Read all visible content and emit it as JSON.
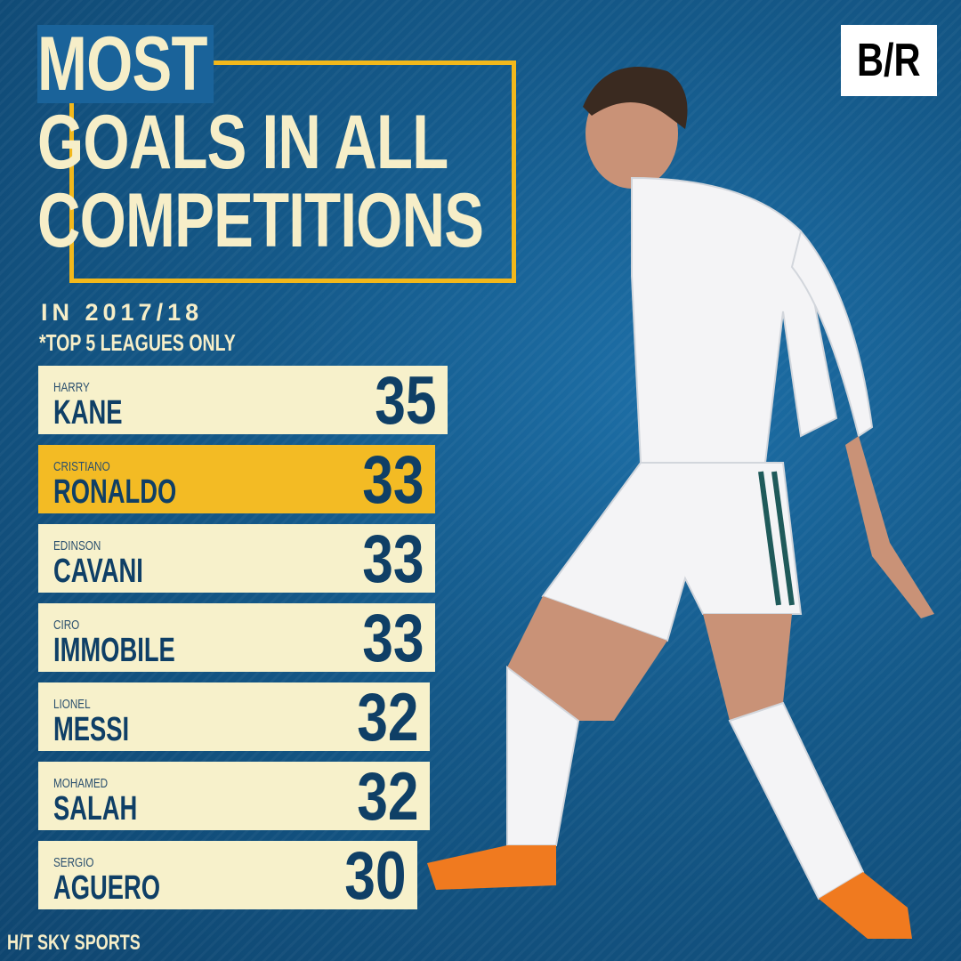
{
  "brand": {
    "logo_text": "B/R"
  },
  "header": {
    "title_lines": [
      "MOST",
      "GOALS IN ALL",
      "COMPETITIONS"
    ],
    "subtitle": "IN 2017/18",
    "note": "*TOP 5 LEAGUES ONLY"
  },
  "footer": {
    "credit": "H/T SKY SPORTS"
  },
  "colors": {
    "background": "#145888",
    "bar": "#f7f1cb",
    "highlight_bar": "#f3bb24",
    "accent_frame": "#f2b81b",
    "text_dark": "#0f3f66"
  },
  "chart_data": {
    "type": "bar",
    "orientation": "horizontal",
    "title": "MOST GOALS IN ALL COMPETITIONS",
    "subtitle": "IN 2017/18",
    "categories": [
      {
        "first": "HARRY",
        "last": "KANE"
      },
      {
        "first": "CRISTIANO",
        "last": "RONALDO"
      },
      {
        "first": "EDINSON",
        "last": "CAVANI"
      },
      {
        "first": "CIRO",
        "last": "IMMOBILE"
      },
      {
        "first": "LIONEL",
        "last": "MESSI"
      },
      {
        "first": "MOHAMED",
        "last": "SALAH"
      },
      {
        "first": "SERGIO",
        "last": "AGUERO"
      }
    ],
    "values": [
      35,
      33,
      33,
      33,
      32,
      32,
      30
    ],
    "highlight_index": 1,
    "grid": false,
    "legend": "none"
  }
}
